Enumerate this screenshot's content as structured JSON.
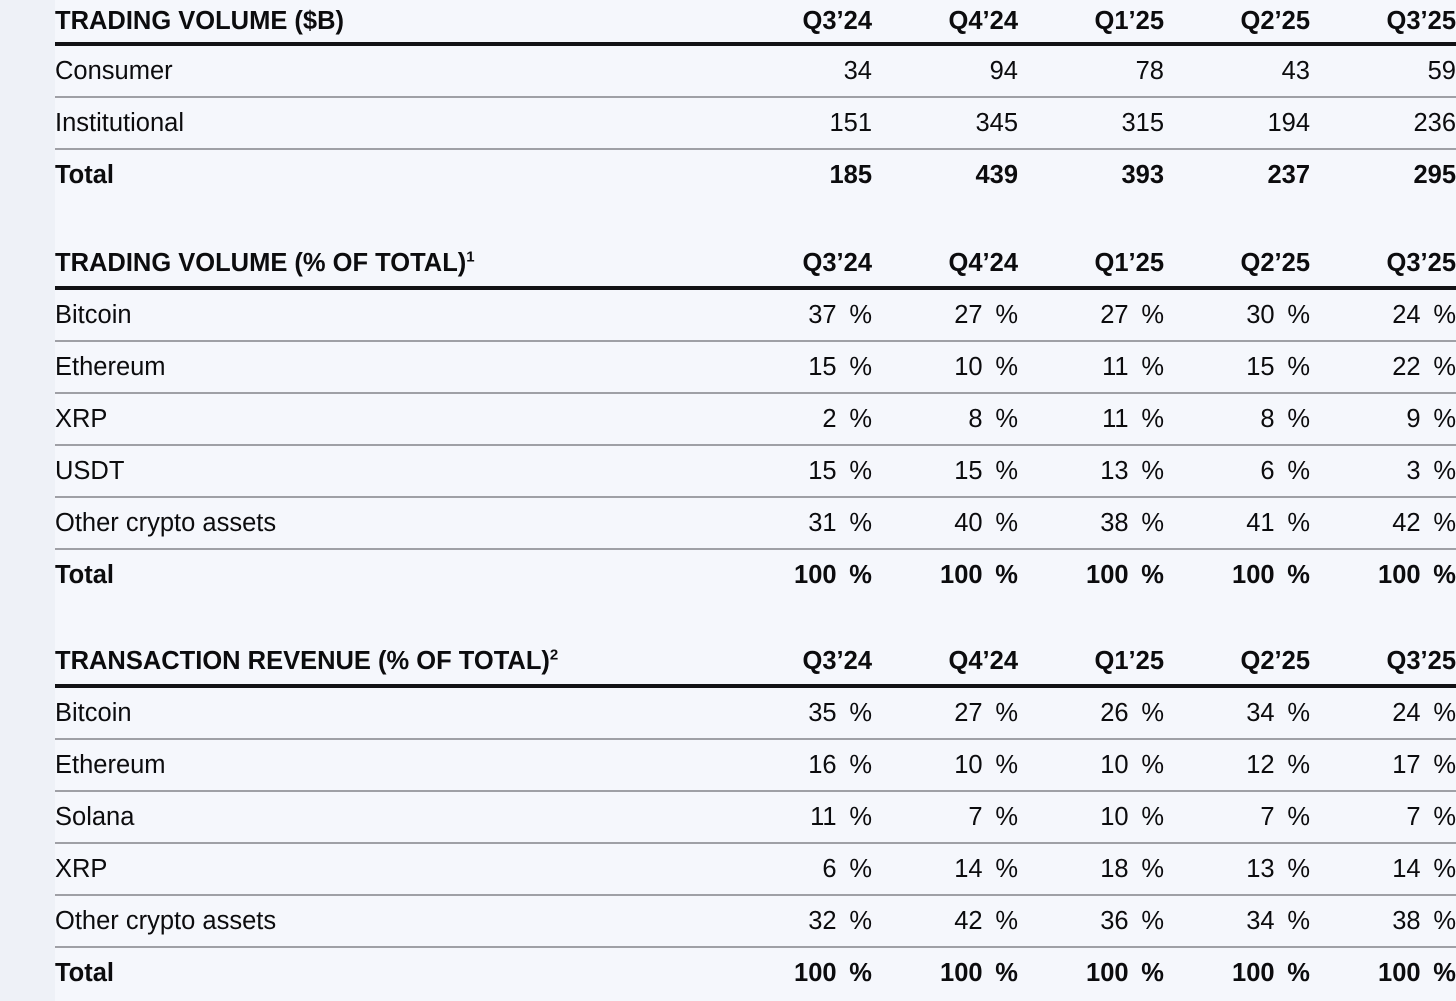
{
  "page": {
    "background": "#eef1f7",
    "table_background": "#f5f7fc",
    "thick_rule_color": "#121215",
    "thin_rule_color": "#9fa0a6",
    "text_color": "#0c0c0e"
  },
  "columns": [
    "Q3’24",
    "Q4’24",
    "Q1’25",
    "Q2’25",
    "Q3’25"
  ],
  "tables": [
    {
      "title": "TRADING VOLUME ($B)",
      "sup": "",
      "rows": [
        {
          "label": "Consumer",
          "values": [
            "34",
            "94",
            "78",
            "43",
            "59"
          ]
        },
        {
          "label": "Institutional",
          "values": [
            "151",
            "345",
            "315",
            "194",
            "236"
          ]
        },
        {
          "label": "Total",
          "values": [
            "185",
            "439",
            "393",
            "237",
            "295"
          ]
        }
      ]
    },
    {
      "title": "TRADING VOLUME (% OF TOTAL)",
      "sup": "1",
      "rows": [
        {
          "label": "Bitcoin",
          "values": [
            "37 %",
            "27 %",
            "27 %",
            "30 %",
            "24 %"
          ]
        },
        {
          "label": "Ethereum",
          "values": [
            "15 %",
            "10 %",
            "11 %",
            "15 %",
            "22 %"
          ]
        },
        {
          "label": "XRP",
          "values": [
            "2 %",
            "8 %",
            "11 %",
            "8 %",
            "9 %"
          ]
        },
        {
          "label": "USDT",
          "values": [
            "15 %",
            "15 %",
            "13 %",
            "6 %",
            "3 %"
          ]
        },
        {
          "label": "Other crypto assets",
          "values": [
            "31 %",
            "40 %",
            "38 %",
            "41 %",
            "42 %"
          ]
        },
        {
          "label": "Total",
          "values": [
            "100 %",
            "100 %",
            "100 %",
            "100 %",
            "100 %"
          ]
        }
      ]
    },
    {
      "title": "TRANSACTION REVENUE (% OF TOTAL)",
      "sup": "2",
      "rows": [
        {
          "label": "Bitcoin",
          "values": [
            "35 %",
            "27 %",
            "26 %",
            "34 %",
            "24 %"
          ]
        },
        {
          "label": "Ethereum",
          "values": [
            "16 %",
            "10 %",
            "10 %",
            "12 %",
            "17 %"
          ]
        },
        {
          "label": "Solana",
          "values": [
            "11 %",
            "7 %",
            "10 %",
            "7 %",
            "7 %"
          ]
        },
        {
          "label": "XRP",
          "values": [
            "6 %",
            "14 %",
            "18 %",
            "13 %",
            "14 %"
          ]
        },
        {
          "label": "Other crypto assets",
          "values": [
            "32 %",
            "42 %",
            "36 %",
            "34 %",
            "38 %"
          ]
        },
        {
          "label": "Total",
          "values": [
            "100 %",
            "100 %",
            "100 %",
            "100 %",
            "100 %"
          ]
        }
      ]
    }
  ]
}
